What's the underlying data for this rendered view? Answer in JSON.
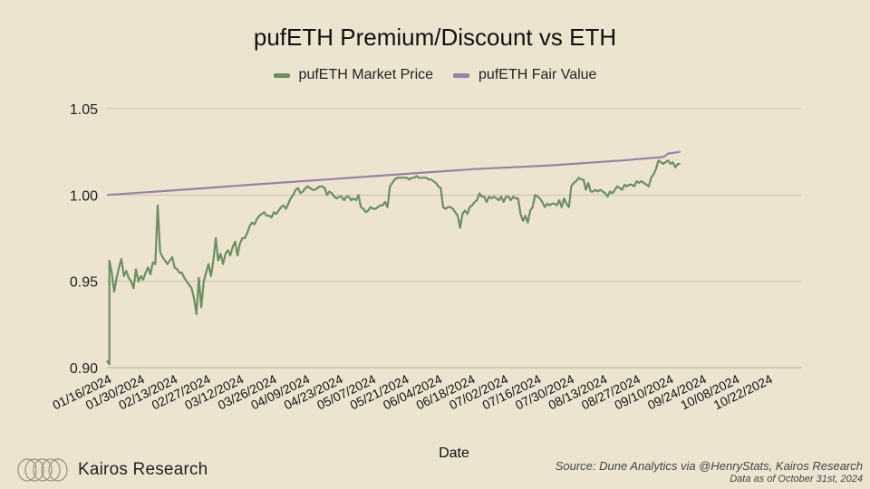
{
  "chart_data": {
    "type": "line",
    "title": "pufETH Premium/Discount vs ETH",
    "xlabel": "Date",
    "ylabel": "",
    "ylim": [
      0.9,
      1.05
    ],
    "yticks": [
      0.9,
      0.95,
      1.0,
      1.05
    ],
    "ytick_labels": [
      "0.90",
      "0.95",
      "1.00",
      "1.05"
    ],
    "xlim": [
      "2024-01-16",
      "2024-10-29"
    ],
    "xtick_labels": [
      "01/16/2024",
      "01/30/2024",
      "02/13/2024",
      "02/27/2024",
      "03/12/2024",
      "03/26/2024",
      "04/09/2024",
      "04/23/2024",
      "05/07/2024",
      "05/21/2024",
      "06/04/2024",
      "06/18/2024",
      "07/02/2024",
      "07/16/2024",
      "07/30/2024",
      "08/13/2024",
      "08/27/2024",
      "09/10/2024",
      "09/24/2024",
      "10/08/2024",
      "10/22/2024"
    ],
    "grid": true,
    "legend_position": "top",
    "series": [
      {
        "name": "pufETH Market Price",
        "color": "#6b8f5f",
        "points": [
          [
            "2024-01-16",
            0.904
          ],
          [
            "2024-01-17",
            0.902
          ],
          [
            "2024-01-17",
            0.962
          ],
          [
            "2024-01-18",
            0.955
          ],
          [
            "2024-01-19",
            0.944
          ],
          [
            "2024-01-20",
            0.952
          ],
          [
            "2024-01-21",
            0.958
          ],
          [
            "2024-01-22",
            0.963
          ],
          [
            "2024-01-23",
            0.953
          ],
          [
            "2024-01-24",
            0.956
          ],
          [
            "2024-01-25",
            0.952
          ],
          [
            "2024-01-26",
            0.95
          ],
          [
            "2024-01-27",
            0.946
          ],
          [
            "2024-01-28",
            0.957
          ],
          [
            "2024-01-29",
            0.95
          ],
          [
            "2024-01-30",
            0.953
          ],
          [
            "2024-01-31",
            0.951
          ],
          [
            "2024-02-01",
            0.955
          ],
          [
            "2024-02-02",
            0.958
          ],
          [
            "2024-02-03",
            0.954
          ],
          [
            "2024-02-04",
            0.961
          ],
          [
            "2024-02-05",
            0.96
          ],
          [
            "2024-02-06",
            0.994
          ],
          [
            "2024-02-07",
            0.967
          ],
          [
            "2024-02-08",
            0.964
          ],
          [
            "2024-02-09",
            0.962
          ],
          [
            "2024-02-10",
            0.96
          ],
          [
            "2024-02-11",
            0.962
          ],
          [
            "2024-02-12",
            0.964
          ],
          [
            "2024-02-13",
            0.958
          ],
          [
            "2024-02-14",
            0.957
          ],
          [
            "2024-02-15",
            0.955
          ],
          [
            "2024-02-16",
            0.955
          ],
          [
            "2024-02-17",
            0.952
          ],
          [
            "2024-02-18",
            0.95
          ],
          [
            "2024-02-19",
            0.948
          ],
          [
            "2024-02-20",
            0.946
          ],
          [
            "2024-02-21",
            0.94
          ],
          [
            "2024-02-22",
            0.931
          ],
          [
            "2024-02-23",
            0.952
          ],
          [
            "2024-02-24",
            0.935
          ],
          [
            "2024-02-25",
            0.95
          ],
          [
            "2024-02-26",
            0.955
          ],
          [
            "2024-02-27",
            0.96
          ],
          [
            "2024-02-28",
            0.953
          ],
          [
            "2024-02-29",
            0.962
          ],
          [
            "2024-03-01",
            0.975
          ],
          [
            "2024-03-02",
            0.962
          ],
          [
            "2024-03-03",
            0.966
          ],
          [
            "2024-03-04",
            0.96
          ],
          [
            "2024-03-05",
            0.966
          ],
          [
            "2024-03-06",
            0.968
          ],
          [
            "2024-03-07",
            0.965
          ],
          [
            "2024-03-08",
            0.97
          ],
          [
            "2024-03-09",
            0.973
          ],
          [
            "2024-03-10",
            0.965
          ],
          [
            "2024-03-11",
            0.972
          ],
          [
            "2024-03-12",
            0.975
          ],
          [
            "2024-03-13",
            0.975
          ],
          [
            "2024-03-14",
            0.978
          ],
          [
            "2024-03-15",
            0.982
          ],
          [
            "2024-03-16",
            0.984
          ],
          [
            "2024-03-17",
            0.983
          ],
          [
            "2024-03-18",
            0.986
          ],
          [
            "2024-03-19",
            0.988
          ],
          [
            "2024-03-20",
            0.989
          ],
          [
            "2024-03-21",
            0.99
          ],
          [
            "2024-03-22",
            0.988
          ],
          [
            "2024-03-23",
            0.988
          ],
          [
            "2024-03-24",
            0.987
          ],
          [
            "2024-03-25",
            0.99
          ],
          [
            "2024-03-26",
            0.989
          ],
          [
            "2024-03-27",
            0.991
          ],
          [
            "2024-03-28",
            0.993
          ],
          [
            "2024-03-29",
            0.994
          ],
          [
            "2024-03-30",
            0.992
          ],
          [
            "2024-03-31",
            0.995
          ],
          [
            "2024-04-01",
            0.998
          ],
          [
            "2024-04-02",
            1.0
          ],
          [
            "2024-04-03",
            1.003
          ],
          [
            "2024-04-04",
            1.004
          ],
          [
            "2024-04-05",
            1.001
          ],
          [
            "2024-04-06",
            1.002
          ],
          [
            "2024-04-07",
            1.004
          ],
          [
            "2024-04-08",
            1.005
          ],
          [
            "2024-04-09",
            1.004
          ],
          [
            "2024-04-10",
            1.003
          ],
          [
            "2024-04-11",
            1.003
          ],
          [
            "2024-04-12",
            1.004
          ],
          [
            "2024-04-13",
            1.005
          ],
          [
            "2024-04-14",
            1.005
          ],
          [
            "2024-04-15",
            1.004
          ],
          [
            "2024-04-16",
            1.0
          ],
          [
            "2024-04-17",
            1.002
          ],
          [
            "2024-04-18",
            1.001
          ],
          [
            "2024-04-19",
            0.999
          ],
          [
            "2024-04-20",
            0.998
          ],
          [
            "2024-04-21",
            0.999
          ],
          [
            "2024-04-22",
            0.999
          ],
          [
            "2024-04-23",
            0.997
          ],
          [
            "2024-04-24",
            0.999
          ],
          [
            "2024-04-25",
            0.999
          ],
          [
            "2024-04-26",
            0.997
          ],
          [
            "2024-04-27",
            0.998
          ],
          [
            "2024-04-28",
            0.997
          ],
          [
            "2024-04-29",
            1.0
          ],
          [
            "2024-04-30",
            0.993
          ],
          [
            "2024-05-01",
            0.992
          ],
          [
            "2024-05-02",
            0.99
          ],
          [
            "2024-05-03",
            0.991
          ],
          [
            "2024-05-04",
            0.993
          ],
          [
            "2024-05-05",
            0.992
          ],
          [
            "2024-05-06",
            0.992
          ],
          [
            "2024-05-07",
            0.993
          ],
          [
            "2024-05-08",
            0.994
          ],
          [
            "2024-05-09",
            0.994
          ],
          [
            "2024-05-10",
            0.996
          ],
          [
            "2024-05-11",
            0.993
          ],
          [
            "2024-05-12",
            1.005
          ],
          [
            "2024-05-13",
            1.007
          ],
          [
            "2024-05-14",
            1.009
          ],
          [
            "2024-05-15",
            1.01
          ],
          [
            "2024-05-16",
            1.01
          ],
          [
            "2024-05-17",
            1.01
          ],
          [
            "2024-05-18",
            1.01
          ],
          [
            "2024-05-19",
            1.01
          ],
          [
            "2024-05-20",
            1.009
          ],
          [
            "2024-05-21",
            1.01
          ],
          [
            "2024-05-22",
            1.01
          ],
          [
            "2024-05-23",
            1.011
          ],
          [
            "2024-05-24",
            1.01
          ],
          [
            "2024-05-25",
            1.01
          ],
          [
            "2024-05-26",
            1.01
          ],
          [
            "2024-05-27",
            1.01
          ],
          [
            "2024-05-28",
            1.009
          ],
          [
            "2024-05-29",
            1.009
          ],
          [
            "2024-05-30",
            1.008
          ],
          [
            "2024-05-31",
            1.007
          ],
          [
            "2024-06-01",
            1.005
          ],
          [
            "2024-06-02",
            1.004
          ],
          [
            "2024-06-03",
            0.993
          ],
          [
            "2024-06-04",
            0.992
          ],
          [
            "2024-06-05",
            0.993
          ],
          [
            "2024-06-06",
            0.993
          ],
          [
            "2024-06-07",
            0.992
          ],
          [
            "2024-06-08",
            0.99
          ],
          [
            "2024-06-09",
            0.988
          ],
          [
            "2024-06-10",
            0.981
          ],
          [
            "2024-06-11",
            0.989
          ],
          [
            "2024-06-12",
            0.991
          ],
          [
            "2024-06-13",
            0.989
          ],
          [
            "2024-06-14",
            0.993
          ],
          [
            "2024-06-15",
            0.994
          ],
          [
            "2024-06-16",
            0.996
          ],
          [
            "2024-06-17",
            0.997
          ],
          [
            "2024-06-18",
            1.001
          ],
          [
            "2024-06-19",
            0.999
          ],
          [
            "2024-06-20",
            0.999
          ],
          [
            "2024-06-21",
            0.996
          ],
          [
            "2024-06-22",
            0.999
          ],
          [
            "2024-06-23",
            0.998
          ],
          [
            "2024-06-24",
            0.999
          ],
          [
            "2024-06-25",
            0.998
          ],
          [
            "2024-06-26",
            0.997
          ],
          [
            "2024-06-27",
            0.999
          ],
          [
            "2024-06-28",
            0.996
          ],
          [
            "2024-06-29",
            0.999
          ],
          [
            "2024-06-30",
            0.999
          ],
          [
            "2024-07-01",
            0.997
          ],
          [
            "2024-07-02",
            0.999
          ],
          [
            "2024-07-03",
            0.998
          ],
          [
            "2024-07-04",
            0.998
          ],
          [
            "2024-07-05",
            0.989
          ],
          [
            "2024-07-06",
            0.985
          ],
          [
            "2024-07-07",
            0.988
          ],
          [
            "2024-07-08",
            0.984
          ],
          [
            "2024-07-09",
            0.991
          ],
          [
            "2024-07-10",
            0.993
          ],
          [
            "2024-07-11",
            1.0
          ],
          [
            "2024-07-12",
            0.999
          ],
          [
            "2024-07-13",
            0.998
          ],
          [
            "2024-07-14",
            0.996
          ],
          [
            "2024-07-15",
            0.993
          ],
          [
            "2024-07-16",
            0.995
          ],
          [
            "2024-07-17",
            0.994
          ],
          [
            "2024-07-18",
            0.995
          ],
          [
            "2024-07-19",
            0.995
          ],
          [
            "2024-07-20",
            0.994
          ],
          [
            "2024-07-21",
            0.997
          ],
          [
            "2024-07-22",
            0.993
          ],
          [
            "2024-07-23",
            0.998
          ],
          [
            "2024-07-24",
            0.995
          ],
          [
            "2024-07-25",
            0.993
          ],
          [
            "2024-07-26",
            1.005
          ],
          [
            "2024-07-27",
            1.007
          ],
          [
            "2024-07-28",
            1.008
          ],
          [
            "2024-07-29",
            1.01
          ],
          [
            "2024-07-30",
            1.009
          ],
          [
            "2024-07-31",
            1.009
          ],
          [
            "2024-08-01",
            1.003
          ],
          [
            "2024-08-02",
            1.007
          ],
          [
            "2024-08-03",
            1.002
          ],
          [
            "2024-08-04",
            1.002
          ],
          [
            "2024-08-05",
            1.003
          ],
          [
            "2024-08-06",
            1.002
          ],
          [
            "2024-08-07",
            1.003
          ],
          [
            "2024-08-08",
            1.002
          ],
          [
            "2024-08-09",
            1.001
          ],
          [
            "2024-08-10",
            0.999
          ],
          [
            "2024-08-11",
            1.002
          ],
          [
            "2024-08-12",
            1.001
          ],
          [
            "2024-08-13",
            1.003
          ],
          [
            "2024-08-14",
            1.005
          ],
          [
            "2024-08-15",
            1.004
          ],
          [
            "2024-08-16",
            1.003
          ],
          [
            "2024-08-17",
            1.006
          ],
          [
            "2024-08-18",
            1.005
          ],
          [
            "2024-08-19",
            1.006
          ],
          [
            "2024-08-20",
            1.006
          ],
          [
            "2024-08-21",
            1.005
          ],
          [
            "2024-08-22",
            1.008
          ],
          [
            "2024-08-23",
            1.007
          ],
          [
            "2024-08-24",
            1.008
          ],
          [
            "2024-08-25",
            1.007
          ],
          [
            "2024-08-26",
            1.006
          ],
          [
            "2024-08-27",
            1.005
          ],
          [
            "2024-08-28",
            1.01
          ],
          [
            "2024-08-29",
            1.012
          ],
          [
            "2024-08-30",
            1.015
          ],
          [
            "2024-08-31",
            1.02
          ],
          [
            "2024-09-01",
            1.019
          ],
          [
            "2024-09-02",
            1.018
          ],
          [
            "2024-09-03",
            1.019
          ],
          [
            "2024-09-04",
            1.02
          ],
          [
            "2024-09-05",
            1.018
          ],
          [
            "2024-09-06",
            1.019
          ],
          [
            "2024-09-07",
            1.016
          ],
          [
            "2024-09-08",
            1.018
          ],
          [
            "2024-09-09",
            1.018
          ]
        ]
      },
      {
        "name": "pufETH Fair Value",
        "color": "#9c7fa8",
        "points": [
          [
            "2024-01-16",
            1.0
          ],
          [
            "2024-02-16",
            1.003
          ],
          [
            "2024-03-16",
            1.006
          ],
          [
            "2024-04-16",
            1.009
          ],
          [
            "2024-05-16",
            1.012
          ],
          [
            "2024-06-16",
            1.015
          ],
          [
            "2024-07-16",
            1.017
          ],
          [
            "2024-08-16",
            1.02
          ],
          [
            "2024-09-02",
            1.022
          ],
          [
            "2024-09-04",
            1.024
          ],
          [
            "2024-09-09",
            1.025
          ]
        ]
      }
    ]
  },
  "branding": {
    "logo_text": "Kairos Research",
    "source_line1": "Source: Dune Analytics via @HenryStats, Kairos Research",
    "source_line2": "Data as of October 31st, 2024"
  }
}
